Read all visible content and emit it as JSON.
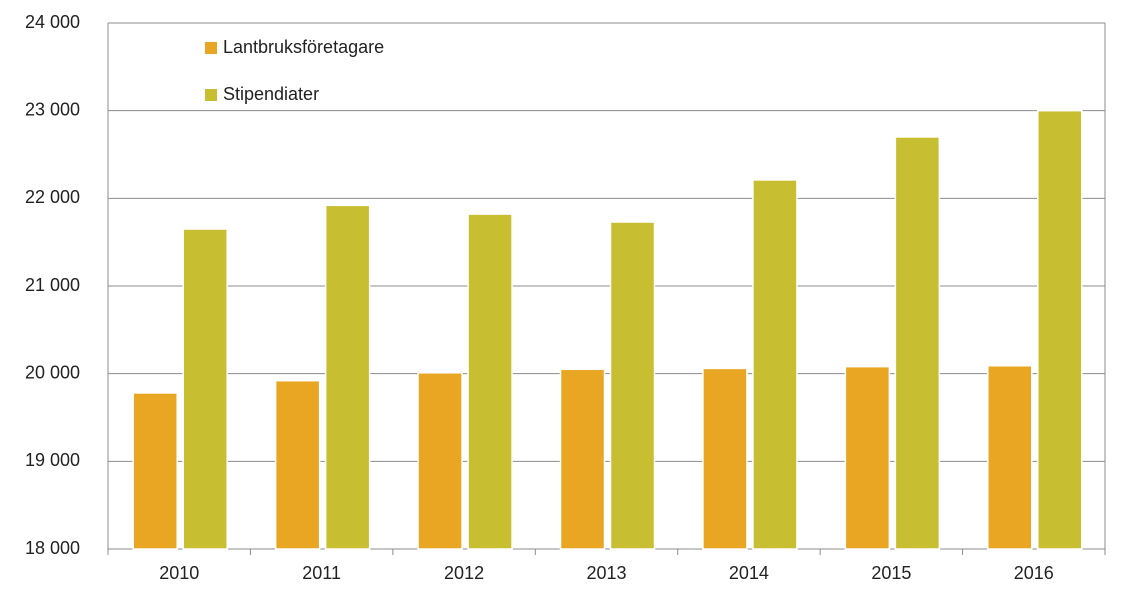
{
  "chart_data": {
    "type": "bar",
    "categories": [
      "2010",
      "2011",
      "2012",
      "2013",
      "2014",
      "2015",
      "2016"
    ],
    "series": [
      {
        "name": "Lantbruksföretagare",
        "color": "#e8a623",
        "values": [
          19780,
          19920,
          20010,
          20050,
          20060,
          20080,
          20090
        ]
      },
      {
        "name": "Stipendiater",
        "color": "#c8be32",
        "values": [
          21650,
          21920,
          21820,
          21730,
          22210,
          22700,
          23000
        ]
      }
    ],
    "ylim": [
      18000,
      24000
    ],
    "yticks": [
      {
        "value": 18000,
        "label": "18 000"
      },
      {
        "value": 19000,
        "label": "19 000"
      },
      {
        "value": 20000,
        "label": "20 000"
      },
      {
        "value": 21000,
        "label": "21 000"
      },
      {
        "value": 22000,
        "label": "22 000"
      },
      {
        "value": 23000,
        "label": "23 000"
      },
      {
        "value": 24000,
        "label": "24 000"
      }
    ],
    "grid": true,
    "legend": "top-left"
  }
}
